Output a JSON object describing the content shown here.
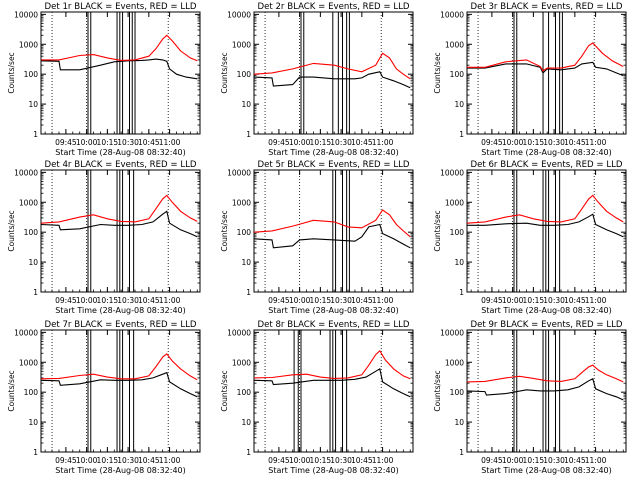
{
  "chart_data": {
    "type": "line",
    "xlabel": "Start Time (28-Aug-08 08:32:40)",
    "ylabel": "Counts/sec",
    "y_scale": "log",
    "ylim": [
      1,
      12000
    ],
    "xlim": [
      "09:27",
      "11:22"
    ],
    "x_ticks": [
      "09:45",
      "10:00",
      "10:15",
      "10:30",
      "10:45",
      "11:00"
    ],
    "y_ticks": [
      "1",
      "10",
      "100",
      "1000",
      "10000"
    ],
    "grid": false,
    "dotted_marker_times": [
      "09:35",
      "10:00",
      "10:59"
    ],
    "colors": {
      "events": "#000000",
      "lld": "#ff0000"
    },
    "panels": [
      {
        "title": "Det 1r BLACK = Events, RED = LLD",
        "spike_times": [
          "10:01",
          "10:03",
          "10:22",
          "10:24",
          "10:26",
          "10:31",
          "10:33",
          "10:35"
        ],
        "series": [
          {
            "name": "Events",
            "x": [
              "09:27",
              "09:40",
              "09:41",
              "09:55",
              "10:10",
              "10:20",
              "10:30",
              "10:40",
              "10:45",
              "10:50",
              "10:55",
              "10:58",
              "11:00",
              "11:05",
              "11:12",
              "11:20"
            ],
            "values": [
              280,
              270,
              140,
              140,
              200,
              260,
              280,
              290,
              300,
              320,
              300,
              270,
              150,
              100,
              80,
              70
            ]
          },
          {
            "name": "LLD",
            "x": [
              "09:27",
              "09:40",
              "09:55",
              "10:05",
              "10:15",
              "10:25",
              "10:35",
              "10:45",
              "10:50",
              "10:55",
              "10:58",
              "11:02",
              "11:08",
              "11:15",
              "11:20"
            ],
            "values": [
              300,
              300,
              420,
              450,
              350,
              290,
              300,
              400,
              700,
              1500,
              2000,
              1300,
              600,
              350,
              280
            ]
          }
        ]
      },
      {
        "title": "Det 2r BLACK = Events, RED = LLD",
        "spike_times": [
          "10:01",
          "10:03",
          "10:24",
          "10:28",
          "10:31",
          "10:34",
          "10:36"
        ],
        "series": [
          {
            "name": "Events",
            "x": [
              "09:27",
              "09:40",
              "09:41",
              "09:55",
              "10:00",
              "10:10",
              "10:25",
              "10:40",
              "10:45",
              "10:50",
              "10:58",
              "11:00",
              "11:08",
              "11:15",
              "11:20"
            ],
            "values": [
              80,
              75,
              40,
              45,
              80,
              80,
              70,
              70,
              75,
              100,
              120,
              80,
              60,
              45,
              35
            ]
          },
          {
            "name": "LLD",
            "x": [
              "09:27",
              "09:40",
              "09:55",
              "10:10",
              "10:25",
              "10:35",
              "10:45",
              "10:55",
              "11:00",
              "11:05",
              "11:10",
              "11:15",
              "11:20"
            ],
            "values": [
              100,
              110,
              150,
              230,
              200,
              150,
              120,
              200,
              500,
              350,
              150,
              100,
              70
            ]
          }
        ]
      },
      {
        "title": "Det 3r BLACK = Events, RED = LLD",
        "spike_times": [
          "10:01",
          "10:03",
          "10:22",
          "10:26",
          "10:31",
          "10:34",
          "10:36"
        ],
        "series": [
          {
            "name": "Events",
            "x": [
              "09:27",
              "09:40",
              "09:55",
              "10:10",
              "10:20",
              "10:22",
              "10:25",
              "10:35",
              "10:45",
              "10:50",
              "10:58",
              "11:00",
              "11:08",
              "11:15",
              "11:20"
            ],
            "values": [
              160,
              160,
              220,
              220,
              170,
              110,
              150,
              140,
              160,
              220,
              250,
              170,
              150,
              110,
              90
            ]
          },
          {
            "name": "LLD",
            "x": [
              "09:27",
              "09:40",
              "09:55",
              "10:10",
              "10:20",
              "10:22",
              "10:25",
              "10:35",
              "10:45",
              "10:50",
              "10:55",
              "10:58",
              "11:05",
              "11:12",
              "11:20"
            ],
            "values": [
              170,
              170,
              260,
              300,
              180,
              130,
              160,
              160,
              200,
              400,
              900,
              1100,
              500,
              280,
              180
            ]
          }
        ]
      },
      {
        "title": "Det 4r BLACK = Events, RED = LLD",
        "spike_times": [
          "10:01",
          "10:03",
          "10:22",
          "10:24",
          "10:26",
          "10:31",
          "10:34"
        ],
        "series": [
          {
            "name": "Events",
            "x": [
              "09:27",
              "09:40",
              "09:41",
              "09:55",
              "10:10",
              "10:20",
              "10:30",
              "10:40",
              "10:48",
              "10:55",
              "10:58",
              "11:00",
              "11:08",
              "11:15",
              "11:20"
            ],
            "values": [
              180,
              170,
              120,
              130,
              180,
              170,
              170,
              180,
              220,
              400,
              500,
              200,
              120,
              90,
              70
            ]
          },
          {
            "name": "LLD",
            "x": [
              "09:27",
              "09:40",
              "09:55",
              "10:05",
              "10:15",
              "10:25",
              "10:35",
              "10:45",
              "10:50",
              "10:55",
              "10:58",
              "11:02",
              "11:08",
              "11:15",
              "11:20"
            ],
            "values": [
              200,
              220,
              320,
              380,
              280,
              230,
              220,
              280,
              600,
              1300,
              1700,
              1000,
              500,
              300,
              230
            ]
          }
        ]
      },
      {
        "title": "Det 5r BLACK = Events, RED = LLD",
        "spike_times": [
          "10:24",
          "10:26",
          "10:31",
          "10:34",
          "10:36"
        ],
        "series": [
          {
            "name": "Events",
            "x": [
              "09:27",
              "09:40",
              "09:41",
              "09:55",
              "10:00",
              "10:10",
              "10:25",
              "10:40",
              "10:45",
              "10:50",
              "10:58",
              "11:00",
              "11:08",
              "11:15",
              "11:20"
            ],
            "values": [
              60,
              55,
              30,
              35,
              55,
              60,
              55,
              50,
              70,
              150,
              180,
              90,
              60,
              40,
              30
            ]
          },
          {
            "name": "LLD",
            "x": [
              "09:27",
              "09:40",
              "09:55",
              "10:10",
              "10:25",
              "10:35",
              "10:45",
              "10:55",
              "11:00",
              "11:05",
              "11:10",
              "11:15",
              "11:20"
            ],
            "values": [
              100,
              110,
              160,
              250,
              220,
              150,
              140,
              250,
              550,
              380,
              180,
              110,
              70
            ]
          }
        ]
      },
      {
        "title": "Det 6r BLACK = Events, RED = LLD",
        "spike_times": [
          "10:01",
          "10:03",
          "10:22",
          "10:24",
          "10:26",
          "10:31",
          "10:34"
        ],
        "series": [
          {
            "name": "Events",
            "x": [
              "09:27",
              "09:40",
              "09:55",
              "10:10",
              "10:20",
              "10:30",
              "10:40",
              "10:48",
              "10:55",
              "10:58",
              "11:00",
              "11:08",
              "11:15",
              "11:20"
            ],
            "values": [
              170,
              170,
              190,
              200,
              170,
              170,
              180,
              220,
              330,
              400,
              180,
              120,
              90,
              70
            ]
          },
          {
            "name": "LLD",
            "x": [
              "09:27",
              "09:40",
              "09:55",
              "10:05",
              "10:15",
              "10:25",
              "10:35",
              "10:45",
              "10:50",
              "10:55",
              "10:58",
              "11:02",
              "11:08",
              "11:15",
              "11:20"
            ],
            "values": [
              200,
              220,
              320,
              380,
              280,
              230,
              220,
              280,
              600,
              1300,
              1700,
              1000,
              500,
              300,
              220
            ]
          }
        ]
      },
      {
        "title": "Det 7r BLACK = Events, RED = LLD",
        "spike_times": [
          "10:01",
          "10:03",
          "10:22",
          "10:24",
          "10:26",
          "10:31",
          "10:34"
        ],
        "series": [
          {
            "name": "Events",
            "x": [
              "09:27",
              "09:40",
              "09:41",
              "09:55",
              "10:10",
              "10:20",
              "10:30",
              "10:40",
              "10:48",
              "10:55",
              "10:58",
              "11:00",
              "11:08",
              "11:15",
              "11:20"
            ],
            "values": [
              250,
              240,
              170,
              190,
              260,
              250,
              250,
              260,
              300,
              400,
              450,
              220,
              130,
              90,
              70
            ]
          },
          {
            "name": "LLD",
            "x": [
              "09:27",
              "09:40",
              "09:55",
              "10:05",
              "10:15",
              "10:25",
              "10:35",
              "10:45",
              "10:50",
              "10:55",
              "10:58",
              "11:02",
              "11:08",
              "11:15",
              "11:20"
            ],
            "values": [
              280,
              290,
              360,
              400,
              320,
              280,
              280,
              350,
              700,
              1500,
              1900,
              1100,
              600,
              350,
              260
            ]
          }
        ]
      },
      {
        "title": "Det 8r BLACK = Events, RED = LLD",
        "spike_times": [
          "09:56",
          "09:59",
          "10:01",
          "10:22",
          "10:24",
          "10:26",
          "10:31",
          "10:34"
        ],
        "series": [
          {
            "name": "Events",
            "x": [
              "09:27",
              "09:40",
              "09:41",
              "09:55",
              "10:10",
              "10:20",
              "10:30",
              "10:40",
              "10:48",
              "10:55",
              "10:58",
              "11:00",
              "11:08",
              "11:15",
              "11:20"
            ],
            "values": [
              250,
              240,
              180,
              200,
              250,
              250,
              250,
              270,
              320,
              500,
              600,
              220,
              130,
              90,
              70
            ]
          },
          {
            "name": "LLD",
            "x": [
              "09:27",
              "09:40",
              "09:55",
              "10:05",
              "10:15",
              "10:25",
              "10:35",
              "10:45",
              "10:50",
              "10:55",
              "10:58",
              "11:02",
              "11:08",
              "11:15",
              "11:20"
            ],
            "values": [
              300,
              310,
              380,
              400,
              320,
              290,
              300,
              380,
              800,
              1800,
              2400,
              1200,
              600,
              350,
              280
            ]
          }
        ]
      },
      {
        "title": "Det 9r BLACK = Events, RED = LLD",
        "spike_times": [
          "10:01",
          "10:03",
          "10:22",
          "10:24",
          "10:26",
          "10:31",
          "10:34"
        ],
        "series": [
          {
            "name": "Events",
            "x": [
              "09:27",
              "09:40",
              "09:41",
              "09:55",
              "10:10",
              "10:20",
              "10:30",
              "10:40",
              "10:48",
              "10:55",
              "10:58",
              "11:00",
              "11:08",
              "11:15",
              "11:20"
            ],
            "values": [
              110,
              105,
              80,
              90,
              120,
              110,
              110,
              120,
              150,
              240,
              280,
              130,
              90,
              70,
              55
            ]
          },
          {
            "name": "LLD",
            "x": [
              "09:27",
              "09:40",
              "09:55",
              "10:05",
              "10:15",
              "10:25",
              "10:35",
              "10:45",
              "10:50",
              "10:55",
              "10:58",
              "11:02",
              "11:08",
              "11:15",
              "11:20"
            ],
            "values": [
              220,
              230,
              300,
              340,
              290,
              240,
              230,
              280,
              450,
              700,
              800,
              550,
              380,
              280,
              220
            ]
          }
        ]
      }
    ]
  }
}
